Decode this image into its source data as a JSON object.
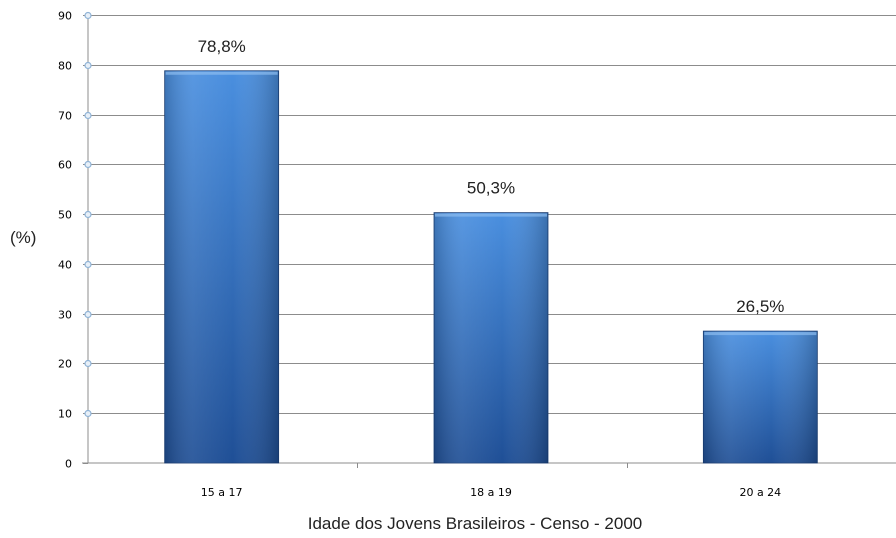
{
  "chart_data": {
    "type": "bar",
    "title": "",
    "xlabel": "Idade dos Jovens Brasileiros - Censo - 2000",
    "ylabel": "(%)",
    "ylim": [
      0,
      90
    ],
    "yticks": [
      "0",
      "10",
      "20",
      "30",
      "40",
      "50",
      "60",
      "70",
      "80",
      "90"
    ],
    "categories": [
      "15 a 17",
      "18 a 19",
      "20 a 24"
    ],
    "values": [
      78.8,
      50.3,
      26.5
    ],
    "data_labels": [
      "78,8%",
      "50,3%",
      "26,5%"
    ],
    "grid": true,
    "legend": "none",
    "colors": {
      "bar_light": "#4a8fdf",
      "bar_dark": "#1f4f96",
      "grid": "#8c8c8c",
      "axis": "#8c8c8c",
      "marker": "#8fb3d6"
    }
  }
}
